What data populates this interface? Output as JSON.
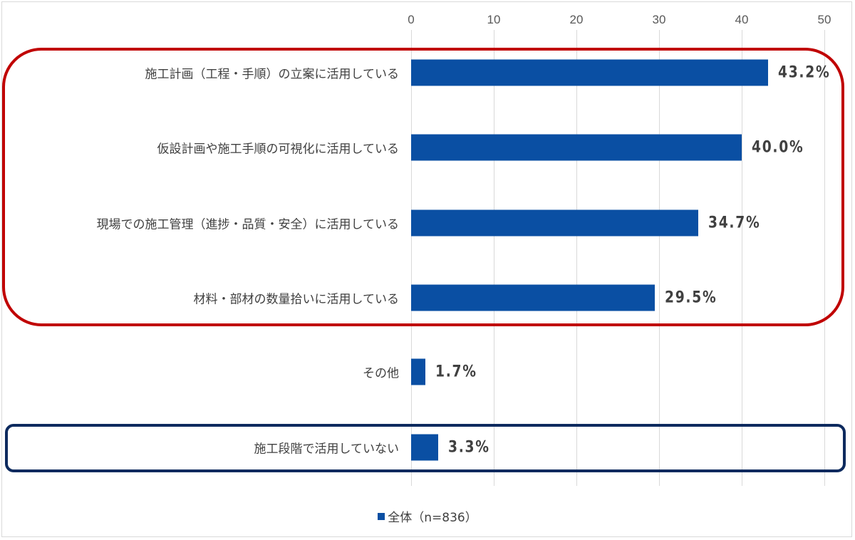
{
  "chart_data": {
    "type": "bar",
    "orientation": "horizontal",
    "title": "",
    "xlabel": "",
    "ylabel": "",
    "xlim": [
      0,
      50
    ],
    "x_ticks": [
      "0",
      "10",
      "20",
      "30",
      "40",
      "50"
    ],
    "grid": true,
    "legend_position": "bottom",
    "categories": [
      "施工計画（工程・手順）の立案に活用している",
      "仮設計画や施工手順の可視化に活用している",
      "現場での施工管理（進捗・品質・安全）に活用している",
      "材料・部材の数量拾いに活用している",
      "その他",
      "施工段階で活用していない"
    ],
    "series": [
      {
        "name": "全体（n=836）",
        "color": "#0a4fa3",
        "values": [
          43.2,
          40.0,
          34.7,
          29.5,
          1.7,
          3.3
        ]
      }
    ],
    "data_labels": [
      "43.2%",
      "40.0%",
      "34.7%",
      "29.5%",
      "1.7%",
      "3.3%"
    ],
    "annotations": [
      {
        "type": "rounded-box",
        "color": "#c00000",
        "encloses": [
          0,
          1,
          2,
          3
        ]
      },
      {
        "type": "rounded-box",
        "color": "#0d2a5e",
        "encloses": [
          5
        ]
      }
    ]
  },
  "legend": {
    "label": "全体（n=836）"
  }
}
